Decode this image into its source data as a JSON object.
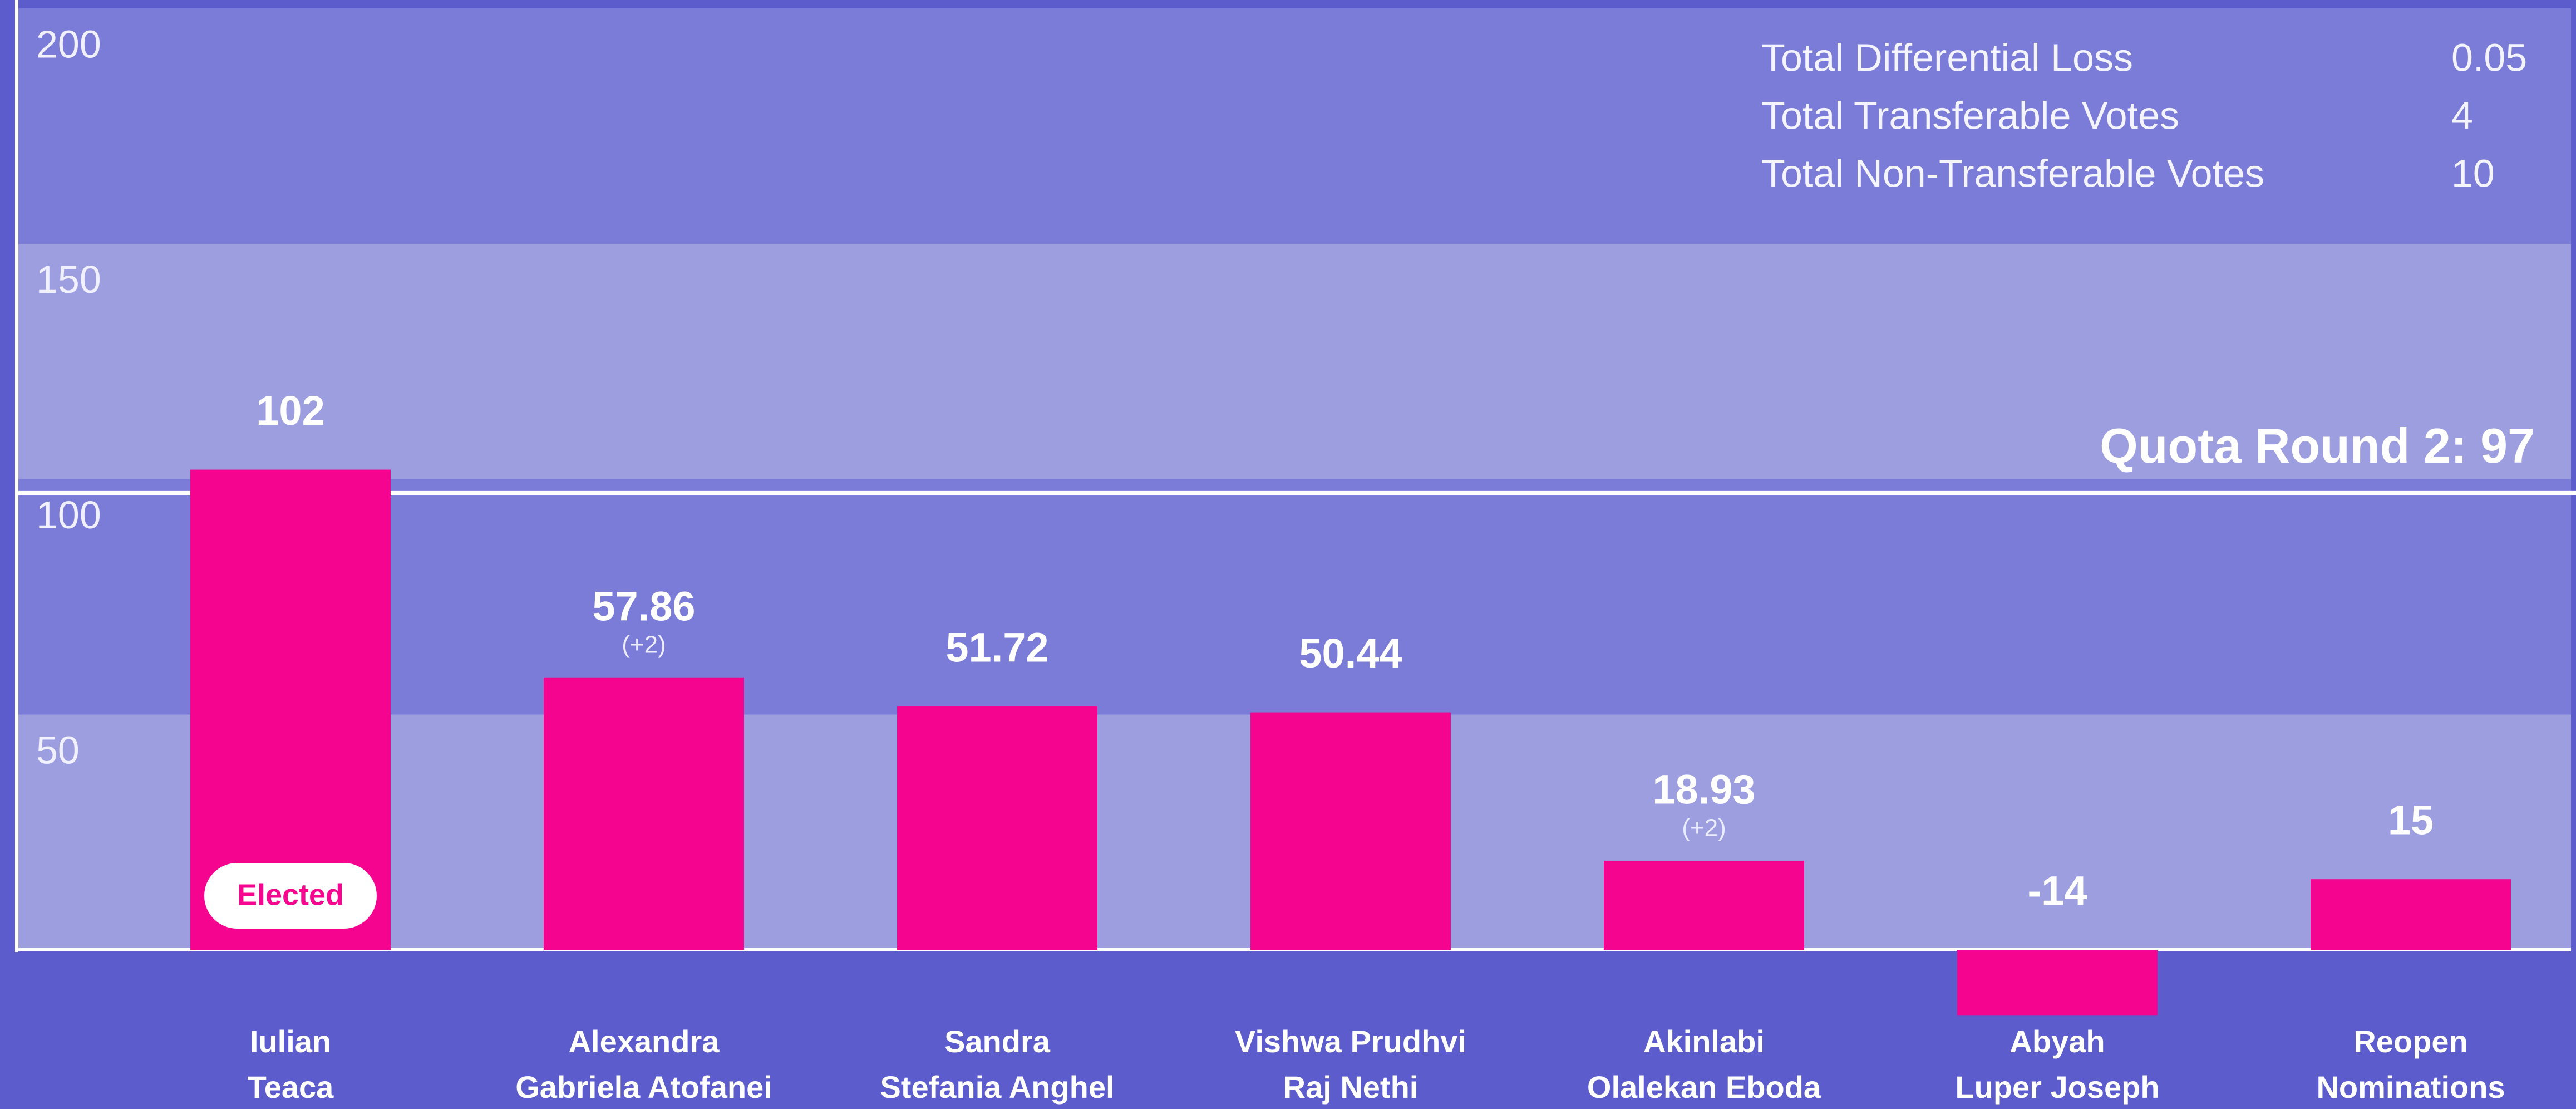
{
  "chart_data": {
    "type": "bar",
    "categories": [
      [
        "Iulian",
        "Teaca"
      ],
      [
        "Alexandra",
        "Gabriela Atofanei"
      ],
      [
        "Sandra",
        "Stefania Anghel"
      ],
      [
        "Vishwa Prudhvi",
        "Raj Nethi"
      ],
      [
        "Akinlabi",
        "Olalekan Eboda"
      ],
      [
        "Abyah",
        "Luper Joseph"
      ],
      [
        "Reopen",
        "Nominations"
      ]
    ],
    "values": [
      102,
      57.86,
      51.72,
      50.44,
      18.93,
      -14,
      15
    ],
    "deltas": [
      null,
      "(+2)",
      null,
      null,
      "(+2)",
      null,
      null
    ],
    "status": [
      "Elected",
      null,
      null,
      null,
      null,
      null,
      null
    ],
    "color": "#f5058f",
    "ylim": [
      0,
      200
    ],
    "yticks": [
      50,
      100,
      150,
      200
    ],
    "quota": {
      "label": "Quota Round 2:",
      "value": 97
    },
    "stats": [
      {
        "label": "Total Differential Loss",
        "value": 0.05
      },
      {
        "label": "Total Transferable Votes",
        "value": 4
      },
      {
        "label": "Total Non-Transferable Votes",
        "value": 10
      }
    ]
  }
}
